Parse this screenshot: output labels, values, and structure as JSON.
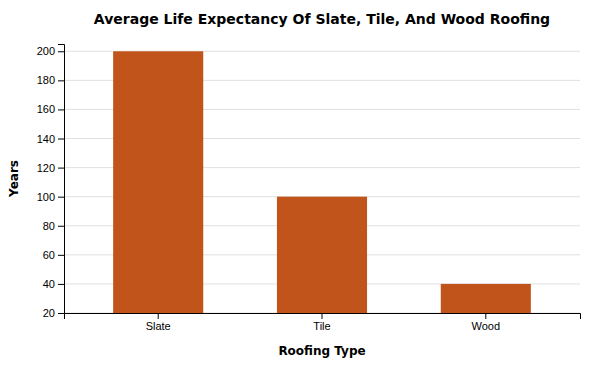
{
  "chart_data": {
    "type": "bar",
    "title": "Average Life Expectancy Of Slate, Tile, And Wood Roofing",
    "xlabel": "Roofing Type",
    "ylabel": "Years",
    "categories": [
      "Slate",
      "Tile",
      "Wood"
    ],
    "values": [
      200,
      100,
      40
    ],
    "color": "#c0541a",
    "ylim": [
      20,
      205
    ],
    "yticks": [
      20,
      40,
      60,
      80,
      100,
      120,
      140,
      160,
      180,
      200
    ],
    "grid": true
  }
}
